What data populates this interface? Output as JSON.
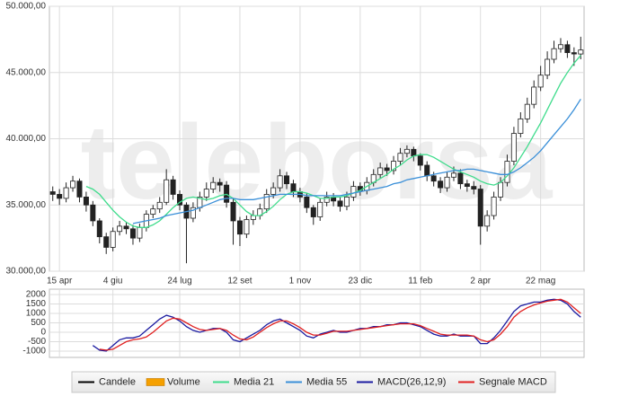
{
  "watermark": "teleborsa",
  "chart_data": [
    {
      "type": "candlestick",
      "categories": [
        null,
        "15 apr",
        null,
        null,
        null,
        null,
        null,
        null,
        null,
        "4 giu",
        null,
        null,
        null,
        null,
        null,
        null,
        null,
        null,
        null,
        "24 lug",
        null,
        null,
        null,
        null,
        null,
        null,
        null,
        null,
        "12 set",
        null,
        null,
        null,
        null,
        null,
        null,
        null,
        null,
        "1 nov",
        null,
        null,
        null,
        null,
        null,
        null,
        null,
        null,
        "23 dic",
        null,
        null,
        null,
        null,
        null,
        null,
        null,
        null,
        "11 feb",
        null,
        null,
        null,
        null,
        null,
        null,
        null,
        null,
        "2 apr",
        null,
        null,
        null,
        null,
        null,
        null,
        null,
        null,
        "22 mag",
        null,
        null,
        null,
        null,
        null,
        null
      ],
      "open": [
        36000,
        35800,
        35500,
        36300,
        36800,
        35600,
        35000,
        33800,
        32600,
        31800,
        33000,
        33400,
        33200,
        32500,
        33300,
        34300,
        34700,
        35200,
        36900,
        35800,
        35000,
        34000,
        34800,
        35600,
        36200,
        36700,
        36500,
        35200,
        33800,
        32800,
        33900,
        34200,
        34700,
        35800,
        36300,
        37200,
        36600,
        36000,
        35600,
        34800,
        34100,
        35200,
        35600,
        35300,
        34900,
        35600,
        36400,
        36100,
        36700,
        37300,
        37800,
        37600,
        38300,
        38900,
        39200,
        38700,
        38000,
        37200,
        36800,
        36300,
        37100,
        37400,
        36600,
        36400,
        36200,
        33400,
        34200,
        35600,
        36700,
        38300,
        40400,
        41500,
        42600,
        43900,
        44800,
        46000,
        46800,
        47100,
        46500,
        46400
      ],
      "high": [
        36400,
        36200,
        36700,
        37200,
        37000,
        36000,
        35300,
        34000,
        32900,
        33300,
        33800,
        33700,
        33500,
        33600,
        34600,
        35000,
        35600,
        37700,
        37200,
        36100,
        35200,
        35200,
        36000,
        36700,
        37100,
        37000,
        36800,
        35500,
        34100,
        34200,
        34600,
        35100,
        36200,
        36700,
        37700,
        37500,
        36900,
        36300,
        35900,
        35000,
        35500,
        36000,
        35900,
        35600,
        36000,
        36800,
        36700,
        37100,
        37700,
        38200,
        38100,
        38700,
        39300,
        39500,
        39400,
        38900,
        38300,
        37500,
        37100,
        37500,
        37900,
        37700,
        36900,
        36800,
        36500,
        34600,
        36000,
        37100,
        38800,
        40900,
        42000,
        43100,
        44400,
        45500,
        46600,
        47400,
        47600,
        47400,
        46900,
        47700
      ],
      "low": [
        35300,
        35000,
        35200,
        36000,
        35200,
        34500,
        33400,
        32100,
        31300,
        31500,
        32700,
        32800,
        32000,
        32200,
        33000,
        34000,
        34400,
        35000,
        35400,
        34600,
        30600,
        33700,
        34500,
        35300,
        35900,
        36000,
        34800,
        32000,
        31900,
        32500,
        33500,
        33900,
        34400,
        35500,
        36000,
        36200,
        35600,
        35200,
        34400,
        33500,
        33800,
        34900,
        34900,
        34500,
        34600,
        35300,
        35700,
        35800,
        36400,
        37000,
        37200,
        37300,
        38000,
        38600,
        38300,
        37600,
        36800,
        36400,
        35900,
        36000,
        36800,
        36200,
        36000,
        35800,
        32000,
        33000,
        33900,
        35300,
        36400,
        38000,
        40100,
        41200,
        42300,
        43600,
        44500,
        45700,
        46500,
        46100,
        45500,
        46000
      ],
      "close": [
        35800,
        35500,
        36300,
        36800,
        35600,
        35000,
        33800,
        32600,
        31800,
        33000,
        33400,
        33200,
        32500,
        33300,
        34300,
        34700,
        35200,
        36900,
        35800,
        35000,
        34000,
        34800,
        35600,
        36200,
        36700,
        36500,
        35200,
        33800,
        32800,
        33900,
        34200,
        34700,
        35800,
        36300,
        37200,
        36600,
        36000,
        35600,
        34800,
        34100,
        35200,
        35600,
        35300,
        34900,
        35600,
        36400,
        36100,
        36700,
        37300,
        37800,
        37600,
        38300,
        38900,
        39200,
        38700,
        38000,
        37200,
        36800,
        36300,
        37100,
        37400,
        36600,
        36400,
        36200,
        33400,
        34200,
        35600,
        36700,
        38300,
        40400,
        41500,
        42600,
        43900,
        44800,
        46000,
        46800,
        47100,
        46500,
        46400,
        46700
      ],
      "up_color": "#ffffff",
      "down_color": "#222222",
      "series": [
        {
          "name": "Media 21",
          "color": "#3fdc8c",
          "values": [
            null,
            null,
            null,
            null,
            null,
            36400,
            36200,
            35800,
            35200,
            34600,
            34100,
            33700,
            33400,
            33300,
            33300,
            33500,
            33800,
            34300,
            34800,
            35200,
            35500,
            35600,
            35500,
            35400,
            35500,
            35700,
            35800,
            35500,
            35000,
            34500,
            34200,
            34200,
            34500,
            34900,
            35400,
            35800,
            36000,
            36000,
            35900,
            35700,
            35500,
            35500,
            35600,
            35600,
            35700,
            35900,
            36100,
            36400,
            36700,
            37000,
            37300,
            37700,
            38000,
            38400,
            38700,
            38800,
            38800,
            38600,
            38300,
            38000,
            37700,
            37500,
            37300,
            37100,
            36800,
            36600,
            36500,
            36700,
            37200,
            37800,
            38600,
            39400,
            40300,
            41200,
            42200,
            43200,
            44200,
            45000,
            45700,
            46300
          ]
        },
        {
          "name": "Media 55",
          "color": "#3a8fd8",
          "values": [
            null,
            null,
            null,
            null,
            null,
            null,
            null,
            null,
            null,
            null,
            null,
            null,
            33600,
            33700,
            33800,
            33900,
            34000,
            34200,
            34300,
            34400,
            34500,
            34600,
            34800,
            35000,
            35200,
            35400,
            35500,
            35500,
            35400,
            35400,
            35400,
            35500,
            35600,
            35700,
            35800,
            35800,
            35800,
            35800,
            35700,
            35700,
            35700,
            35700,
            35700,
            35700,
            35800,
            35900,
            36000,
            36100,
            36200,
            36300,
            36400,
            36600,
            36700,
            36900,
            37000,
            37100,
            37200,
            37300,
            37400,
            37500,
            37600,
            37600,
            37700,
            37700,
            37600,
            37500,
            37400,
            37300,
            37300,
            37500,
            37800,
            38200,
            38600,
            39100,
            39700,
            40300,
            40900,
            41500,
            42200,
            43000
          ]
        }
      ],
      "ylim": [
        30000,
        50000
      ],
      "yticks": [
        {
          "value": 30000,
          "label": "30.000,00"
        },
        {
          "value": 35000,
          "label": "35.000,00"
        },
        {
          "value": 40000,
          "label": "40.000,00"
        },
        {
          "value": 45000,
          "label": "45.000,00"
        },
        {
          "value": 50000,
          "label": "50.000,00"
        }
      ],
      "grid": true
    },
    {
      "type": "line",
      "series": [
        {
          "name": "MACD(26,12,9)",
          "color": "#1a1aa0",
          "values": [
            null,
            null,
            null,
            null,
            null,
            null,
            -700,
            -950,
            -1000,
            -700,
            -400,
            -300,
            -300,
            -200,
            100,
            400,
            700,
            900,
            800,
            600,
            300,
            100,
            0,
            100,
            200,
            200,
            0,
            -400,
            -500,
            -300,
            -100,
            100,
            400,
            600,
            700,
            500,
            300,
            100,
            -200,
            -300,
            -100,
            0,
            100,
            0,
            0,
            100,
            200,
            200,
            300,
            300,
            400,
            400,
            500,
            500,
            400,
            300,
            100,
            -100,
            -200,
            -200,
            -100,
            -200,
            -200,
            -200,
            -600,
            -600,
            -300,
            100,
            600,
            1100,
            1400,
            1500,
            1600,
            1600,
            1700,
            1750,
            1700,
            1500,
            1100,
            800
          ]
        },
        {
          "name": "Segnale MACD",
          "color": "#e02020",
          "values": [
            null,
            null,
            null,
            null,
            null,
            null,
            null,
            -900,
            -950,
            -900,
            -700,
            -500,
            -400,
            -350,
            -250,
            0,
            300,
            600,
            750,
            700,
            500,
            300,
            150,
            100,
            150,
            200,
            100,
            -150,
            -350,
            -400,
            -250,
            0,
            250,
            450,
            600,
            600,
            450,
            250,
            0,
            -150,
            -150,
            -50,
            50,
            50,
            50,
            100,
            150,
            200,
            250,
            300,
            350,
            400,
            450,
            450,
            450,
            350,
            200,
            50,
            -100,
            -150,
            -150,
            -150,
            -150,
            -200,
            -400,
            -500,
            -400,
            -100,
            300,
            800,
            1100,
            1300,
            1450,
            1550,
            1650,
            1700,
            1750,
            1600,
            1300,
            1000
          ]
        }
      ],
      "ylim": [
        -1000,
        2000
      ],
      "yticks": [
        2000,
        1500,
        1000,
        500,
        0,
        -500,
        -1000
      ],
      "grid": true
    }
  ],
  "legend_extra": [
    {
      "name": "Candele",
      "color": "#000000"
    },
    {
      "name": "Volume",
      "color": "#f5a000"
    }
  ]
}
